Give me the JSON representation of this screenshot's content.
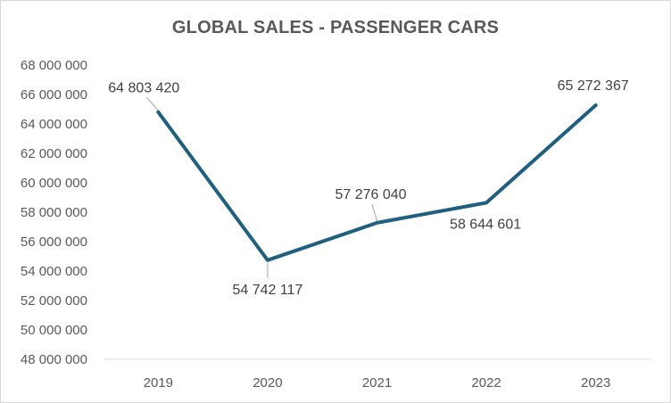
{
  "chart_data": {
    "type": "line",
    "title": "GLOBAL SALES - PASSENGER CARS",
    "xlabel": "",
    "ylabel": "",
    "categories": [
      "2019",
      "2020",
      "2021",
      "2022",
      "2023"
    ],
    "series": [
      {
        "values": [
          64803420,
          54742117,
          57276040,
          58644601,
          65272367
        ]
      }
    ],
    "data_labels": [
      "64 803 420",
      "54 742 117",
      "57 276 040",
      "58 644 601",
      "65 272 367"
    ],
    "ylim": [
      48000000,
      68000000
    ],
    "y_ticks": [
      48000000,
      50000000,
      52000000,
      54000000,
      56000000,
      58000000,
      60000000,
      62000000,
      64000000,
      66000000,
      68000000
    ],
    "y_tick_labels": [
      "48 000 000",
      "50 000 000",
      "52 000 000",
      "54 000 000",
      "56 000 000",
      "58 000 000",
      "60 000 000",
      "62 000 000",
      "64 000 000",
      "66 000 000",
      "68 000 000"
    ],
    "grid": false,
    "legend": "none",
    "colors": {
      "line": "#1f5f7f",
      "axis": "#d9d9d9",
      "leader": "#a6a6a6"
    }
  }
}
